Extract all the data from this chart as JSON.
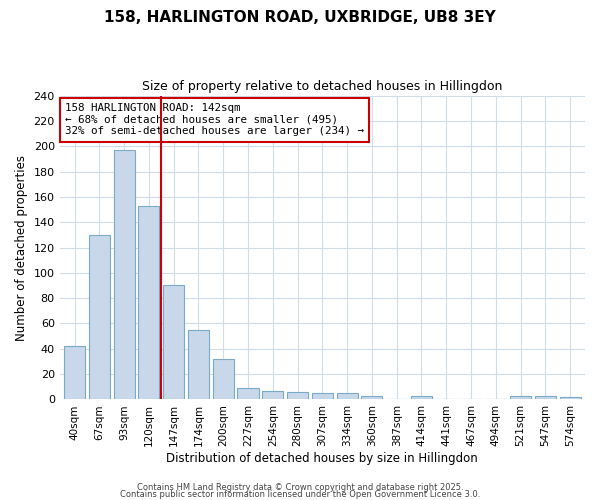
{
  "title_line1": "158, HARLINGTON ROAD, UXBRIDGE, UB8 3EY",
  "title_line2": "Size of property relative to detached houses in Hillingdon",
  "xlabel": "Distribution of detached houses by size in Hillingdon",
  "ylabel": "Number of detached properties",
  "categories": [
    "40sqm",
    "67sqm",
    "93sqm",
    "120sqm",
    "147sqm",
    "174sqm",
    "200sqm",
    "227sqm",
    "254sqm",
    "280sqm",
    "307sqm",
    "334sqm",
    "360sqm",
    "387sqm",
    "414sqm",
    "441sqm",
    "467sqm",
    "494sqm",
    "521sqm",
    "547sqm",
    "574sqm"
  ],
  "values": [
    42,
    130,
    197,
    153,
    90,
    55,
    32,
    9,
    7,
    6,
    5,
    5,
    3,
    0,
    3,
    0,
    0,
    0,
    3,
    3,
    2
  ],
  "bar_color": "#c8d8ea",
  "bar_edge_color": "#7aaac8",
  "background_color": "#ffffff",
  "grid_color": "#d0dce8",
  "annotation_line_color": "#cc0000",
  "annotation_box_text_line1": "158 HARLINGTON ROAD: 142sqm",
  "annotation_box_text_line2": "← 68% of detached houses are smaller (495)",
  "annotation_box_text_line3": "32% of semi-detached houses are larger (234) →",
  "annotation_box_color": "#ffffff",
  "annotation_box_edge_color": "#cc0000",
  "ylim": [
    0,
    240
  ],
  "yticks": [
    0,
    20,
    40,
    60,
    80,
    100,
    120,
    140,
    160,
    180,
    200,
    220,
    240
  ],
  "footer_line1": "Contains HM Land Registry data © Crown copyright and database right 2025.",
  "footer_line2": "Contains public sector information licensed under the Open Government Licence 3.0.",
  "red_line_index": 3.5
}
